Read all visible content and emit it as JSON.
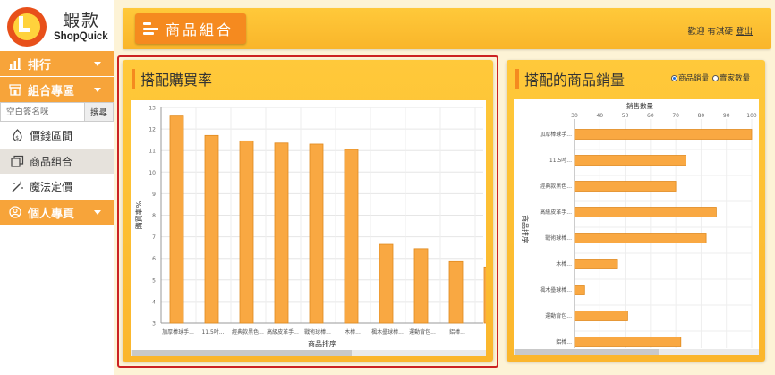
{
  "brand": {
    "name_zh": "蝦款",
    "name_en": "ShopQuick",
    "colors": {
      "primary": "#f7a43a",
      "accent": "#f58a1f",
      "header": "#ffc93a",
      "bar": "#f9a842",
      "highlight": "#cc2222"
    }
  },
  "sidebar": {
    "menu_ranking": {
      "label": "排行",
      "icon": "bar-chart-icon"
    },
    "menu_combo": {
      "label": "組合專區",
      "icon": "store-icon"
    },
    "search": {
      "placeholder": "空白簽名咪",
      "button": "搜尋"
    },
    "items": [
      {
        "label": "價錢區間",
        "icon": "price-tag-icon",
        "active": false
      },
      {
        "label": "商品組合",
        "icon": "copy-icon",
        "active": true
      },
      {
        "label": "魔法定價",
        "icon": "magic-wand-icon",
        "active": false
      }
    ],
    "menu_personal": {
      "label": "個人專頁",
      "icon": "user-circle-icon"
    }
  },
  "header": {
    "title": "商品組合",
    "welcome": "歡迎 有淇硬",
    "logout": "登出"
  },
  "left_panel": {
    "title": "搭配購買率"
  },
  "right_panel": {
    "title": "搭配的商品銷量",
    "radio_options": [
      {
        "label": "商品銷量",
        "checked": true
      },
      {
        "label": "賣家數量",
        "checked": false
      }
    ]
  },
  "chart_data": [
    {
      "type": "bar",
      "orientation": "vertical",
      "ylabel": "購買率%",
      "xlabel": "商品排序",
      "ylim": [
        3,
        13
      ],
      "yticks": [
        3,
        4,
        5,
        6,
        7,
        8,
        9,
        10,
        11,
        12,
        13
      ],
      "grid": true,
      "categories": [
        "加厚棒球手...",
        "11.5吋...",
        "經典款黑色...",
        "高級皮革手...",
        "戰術球棒...",
        "木棒...",
        "楓木壘球棒...",
        "運動背包...",
        "鋁棒...",
        "全..."
      ],
      "values": [
        12.6,
        11.7,
        11.45,
        11.35,
        11.3,
        11.05,
        6.65,
        6.45,
        5.85,
        5.6
      ]
    },
    {
      "type": "bar",
      "orientation": "horizontal",
      "title": "銷售數量",
      "ylabel": "商品排序",
      "xlim": [
        30,
        100
      ],
      "xticks": [
        30,
        40,
        50,
        60,
        70,
        80,
        90,
        100
      ],
      "grid": true,
      "categories": [
        "加厚棒球手...",
        "11.5吋...",
        "經典款黑色...",
        "高級皮革手...",
        "戰術球棒...",
        "木棒...",
        "楓木壘球棒...",
        "運動背包...",
        "鋁棒..."
      ],
      "values": [
        100,
        74,
        70,
        86,
        82,
        47,
        34,
        51,
        72
      ]
    }
  ]
}
